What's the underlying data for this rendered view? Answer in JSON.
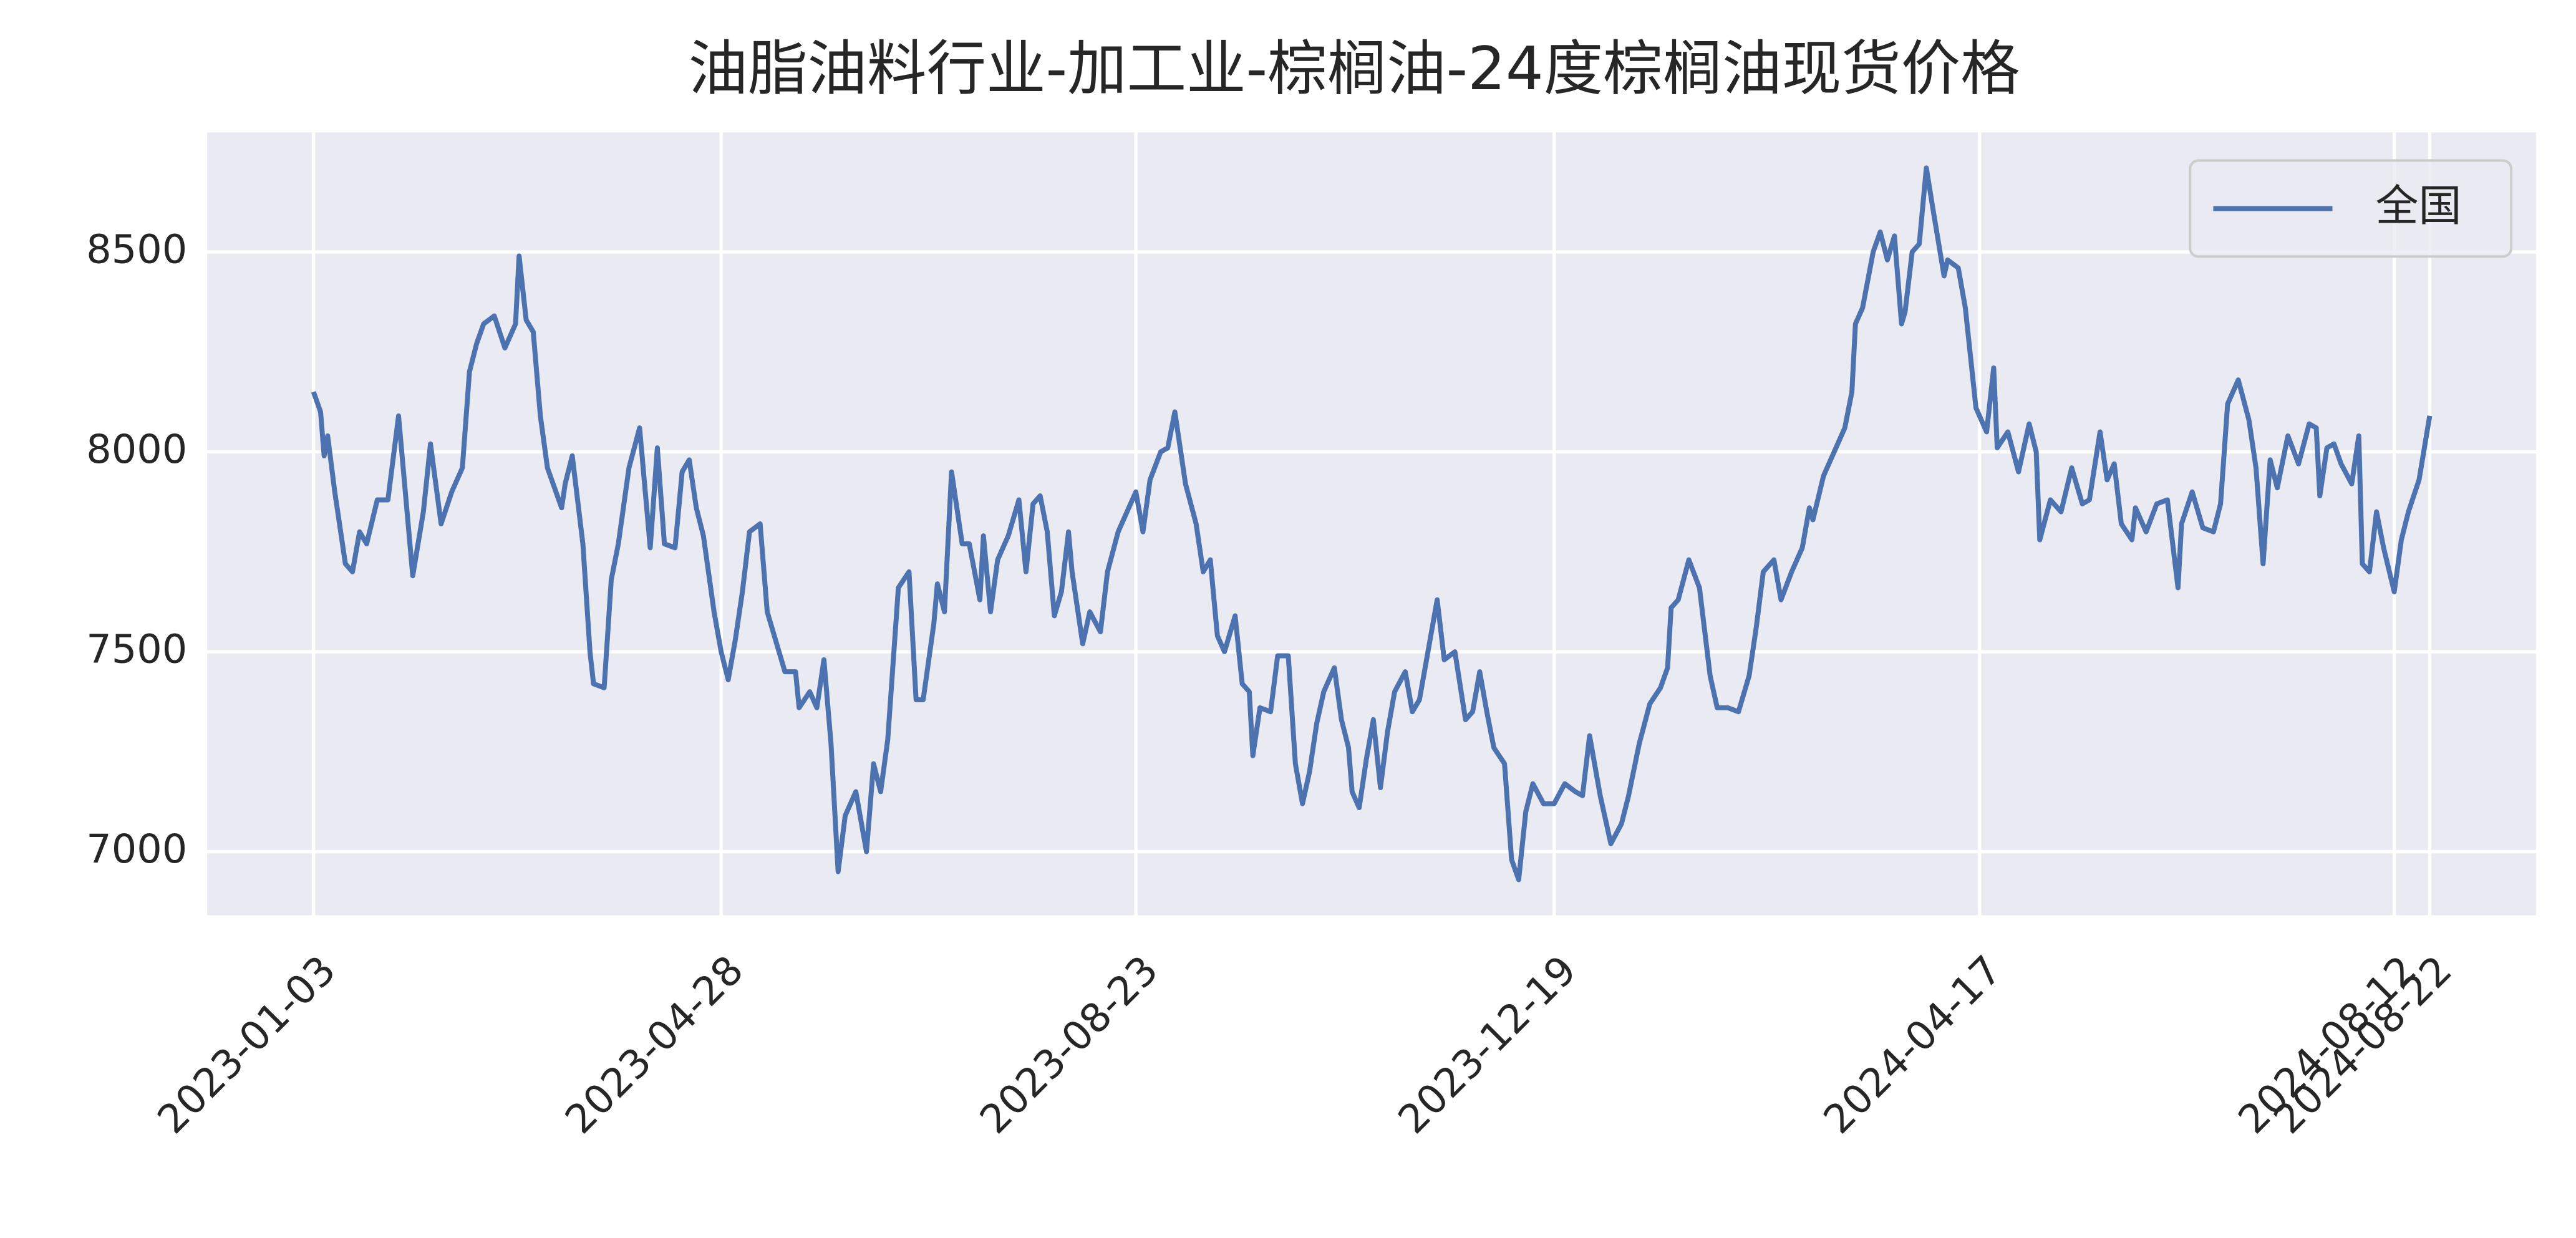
{
  "chart_data": {
    "type": "line",
    "title": "油脂油料行业-加工业-棕榈油-24度棕榈油现货价格",
    "x": [
      "2023-01-03",
      "2023-01-05",
      "2023-01-06",
      "2023-01-07",
      "2023-01-09",
      "2023-01-12",
      "2023-01-14",
      "2023-01-16",
      "2023-01-18",
      "2023-01-21",
      "2023-01-24",
      "2023-01-27",
      "2023-01-31",
      "2023-02-03",
      "2023-02-05",
      "2023-02-08",
      "2023-02-11",
      "2023-02-14",
      "2023-02-16",
      "2023-02-18",
      "2023-02-20",
      "2023-02-23",
      "2023-02-26",
      "2023-03-01",
      "2023-03-02",
      "2023-03-04",
      "2023-03-06",
      "2023-03-08",
      "2023-03-10",
      "2023-03-14",
      "2023-03-15",
      "2023-03-17",
      "2023-03-20",
      "2023-03-22",
      "2023-03-23",
      "2023-03-26",
      "2023-03-28",
      "2023-03-30",
      "2023-04-02",
      "2023-04-05",
      "2023-04-08",
      "2023-04-10",
      "2023-04-12",
      "2023-04-15",
      "2023-04-17",
      "2023-04-19",
      "2023-04-21",
      "2023-04-23",
      "2023-04-26",
      "2023-04-28",
      "2023-04-30",
      "2023-05-02",
      "2023-05-04",
      "2023-05-06",
      "2023-05-09",
      "2023-05-11",
      "2023-05-13",
      "2023-05-16",
      "2023-05-19",
      "2023-05-20",
      "2023-05-23",
      "2023-05-25",
      "2023-05-27",
      "2023-05-29",
      "2023-05-31",
      "2023-06-02",
      "2023-06-05",
      "2023-06-08",
      "2023-06-10",
      "2023-06-12",
      "2023-06-14",
      "2023-06-17",
      "2023-06-20",
      "2023-06-22",
      "2023-06-24",
      "2023-06-27",
      "2023-06-28",
      "2023-06-30",
      "2023-07-02",
      "2023-07-05",
      "2023-07-07",
      "2023-07-10",
      "2023-07-11",
      "2023-07-13",
      "2023-07-15",
      "2023-07-18",
      "2023-07-21",
      "2023-07-23",
      "2023-07-25",
      "2023-07-27",
      "2023-07-29",
      "2023-07-31",
      "2023-08-02",
      "2023-08-04",
      "2023-08-05",
      "2023-08-08",
      "2023-08-10",
      "2023-08-13",
      "2023-08-15",
      "2023-08-18",
      "2023-08-20",
      "2023-08-23",
      "2023-08-25",
      "2023-08-27",
      "2023-08-30",
      "2023-09-01",
      "2023-09-03",
      "2023-09-06",
      "2023-09-09",
      "2023-09-11",
      "2023-09-13",
      "2023-09-15",
      "2023-09-17",
      "2023-09-20",
      "2023-09-22",
      "2023-09-24",
      "2023-09-25",
      "2023-09-27",
      "2023-09-30",
      "2023-10-02",
      "2023-10-05",
      "2023-10-07",
      "2023-10-09",
      "2023-10-11",
      "2023-10-13",
      "2023-10-15",
      "2023-10-18",
      "2023-10-20",
      "2023-10-22",
      "2023-10-23",
      "2023-10-25",
      "2023-10-27",
      "2023-10-29",
      "2023-10-31",
      "2023-11-02",
      "2023-11-04",
      "2023-11-07",
      "2023-11-09",
      "2023-11-11",
      "2023-11-13",
      "2023-11-16",
      "2023-11-18",
      "2023-11-21",
      "2023-11-24",
      "2023-11-26",
      "2023-11-28",
      "2023-11-30",
      "2023-12-02",
      "2023-12-05",
      "2023-12-07",
      "2023-12-09",
      "2023-12-11",
      "2023-12-13",
      "2023-12-16",
      "2023-12-19",
      "2023-12-22",
      "2023-12-25",
      "2023-12-27",
      "2023-12-29",
      "2024-01-01",
      "2024-01-04",
      "2024-01-07",
      "2024-01-09",
      "2024-01-12",
      "2024-01-15",
      "2024-01-18",
      "2024-01-20",
      "2024-01-21",
      "2024-01-23",
      "2024-01-26",
      "2024-01-29",
      "2024-02-01",
      "2024-02-03",
      "2024-02-06",
      "2024-02-09",
      "2024-02-12",
      "2024-02-14",
      "2024-02-16",
      "2024-02-19",
      "2024-02-21",
      "2024-02-24",
      "2024-02-27",
      "2024-02-29",
      "2024-03-01",
      "2024-03-04",
      "2024-03-07",
      "2024-03-10",
      "2024-03-12",
      "2024-03-13",
      "2024-03-15",
      "2024-03-18",
      "2024-03-20",
      "2024-03-22",
      "2024-03-24",
      "2024-03-26",
      "2024-03-27",
      "2024-03-29",
      "2024-03-31",
      "2024-04-02",
      "2024-04-04",
      "2024-04-07",
      "2024-04-08",
      "2024-04-11",
      "2024-04-13",
      "2024-04-16",
      "2024-04-19",
      "2024-04-21",
      "2024-04-22",
      "2024-04-25",
      "2024-04-28",
      "2024-05-01",
      "2024-05-03",
      "2024-05-04",
      "2024-05-07",
      "2024-05-10",
      "2024-05-13",
      "2024-05-16",
      "2024-05-18",
      "2024-05-21",
      "2024-05-23",
      "2024-05-25",
      "2024-05-27",
      "2024-05-30",
      "2024-05-31",
      "2024-06-03",
      "2024-06-06",
      "2024-06-09",
      "2024-06-12",
      "2024-06-13",
      "2024-06-16",
      "2024-06-19",
      "2024-06-22",
      "2024-06-24",
      "2024-06-26",
      "2024-06-29",
      "2024-07-02",
      "2024-07-04",
      "2024-07-06",
      "2024-07-08",
      "2024-07-10",
      "2024-07-13",
      "2024-07-16",
      "2024-07-19",
      "2024-07-21",
      "2024-07-22",
      "2024-07-24",
      "2024-07-26",
      "2024-07-28",
      "2024-07-31",
      "2024-08-02",
      "2024-08-03",
      "2024-08-05",
      "2024-08-07",
      "2024-08-09",
      "2024-08-12",
      "2024-08-14",
      "2024-08-16",
      "2024-08-19",
      "2024-08-22"
    ],
    "series": [
      {
        "name": "全国",
        "color": "#4c72b0",
        "values": [
          8150,
          8100,
          7990,
          8040,
          7900,
          7720,
          7700,
          7800,
          7770,
          7880,
          7880,
          8090,
          7690,
          7850,
          8020,
          7820,
          7900,
          7960,
          8200,
          8270,
          8320,
          8340,
          8260,
          8320,
          8490,
          8330,
          8300,
          8090,
          7960,
          7860,
          7920,
          7990,
          7770,
          7500,
          7420,
          7410,
          7680,
          7770,
          7960,
          8060,
          7760,
          8010,
          7770,
          7760,
          7950,
          7980,
          7860,
          7790,
          7600,
          7500,
          7430,
          7530,
          7650,
          7800,
          7820,
          7600,
          7540,
          7450,
          7450,
          7360,
          7400,
          7360,
          7480,
          7270,
          6950,
          7090,
          7150,
          7000,
          7220,
          7150,
          7280,
          7660,
          7700,
          7380,
          7380,
          7570,
          7670,
          7600,
          7950,
          7770,
          7770,
          7630,
          7790,
          7600,
          7730,
          7790,
          7880,
          7700,
          7870,
          7890,
          7800,
          7590,
          7650,
          7800,
          7700,
          7520,
          7600,
          7550,
          7700,
          7800,
          7840,
          7900,
          7800,
          7930,
          8000,
          8010,
          8100,
          7920,
          7820,
          7700,
          7730,
          7540,
          7500,
          7590,
          7420,
          7400,
          7240,
          7360,
          7350,
          7490,
          7490,
          7220,
          7120,
          7200,
          7320,
          7400,
          7460,
          7330,
          7260,
          7150,
          7110,
          7230,
          7330,
          7160,
          7300,
          7400,
          7450,
          7350,
          7380,
          7480,
          7630,
          7480,
          7500,
          7330,
          7350,
          7450,
          7350,
          7260,
          7220,
          6980,
          6930,
          7100,
          7170,
          7120,
          7120,
          7170,
          7150,
          7140,
          7290,
          7140,
          7020,
          7070,
          7140,
          7270,
          7370,
          7410,
          7460,
          7610,
          7630,
          7730,
          7660,
          7440,
          7360,
          7360,
          7350,
          7440,
          7560,
          7700,
          7730,
          7630,
          7700,
          7760,
          7860,
          7830,
          7940,
          8000,
          8060,
          8150,
          8320,
          8360,
          8500,
          8550,
          8480,
          8540,
          8320,
          8350,
          8500,
          8520,
          8710,
          8600,
          8440,
          8480,
          8460,
          8360,
          8110,
          8050,
          8210,
          8010,
          8050,
          7950,
          8070,
          8000,
          7780,
          7880,
          7850,
          7960,
          7870,
          7880,
          8050,
          7930,
          7970,
          7820,
          7780,
          7860,
          7800,
          7870,
          7880,
          7660,
          7820,
          7900,
          7810,
          7800,
          7870,
          8120,
          8180,
          8080,
          7960,
          7720,
          7980,
          7910,
          8040,
          7970,
          8070,
          8060,
          7890,
          8010,
          8020,
          7970,
          7920,
          8040,
          7720,
          7700,
          7850,
          7760,
          7650,
          7780,
          7850,
          7930,
          8090
        ]
      }
    ],
    "xlim": [
      "2022-12-04",
      "2024-09-21"
    ],
    "xticks": [
      "2023-01-03",
      "2023-04-28",
      "2023-08-23",
      "2023-12-19",
      "2024-04-17",
      "2024-08-12",
      "2024-08-22"
    ],
    "ylim": [
      6841,
      8799
    ],
    "yticks": [
      7000,
      7500,
      8000,
      8500
    ],
    "grid": true,
    "legend": "upper right"
  }
}
